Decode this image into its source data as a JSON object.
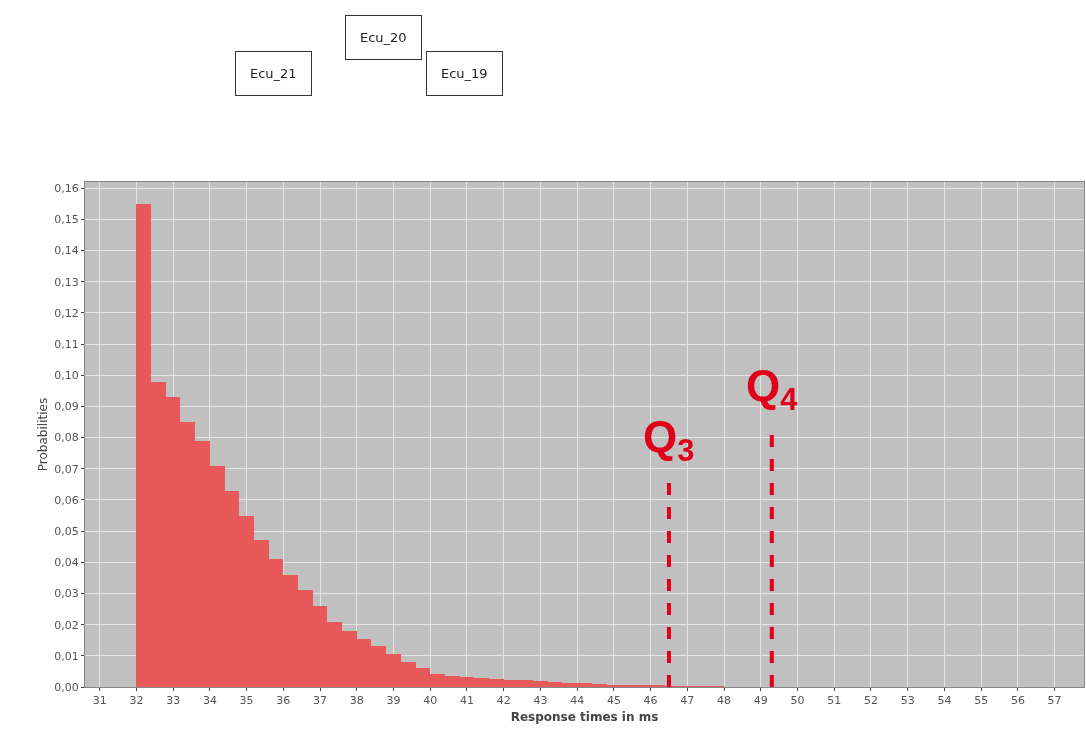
{
  "chart_data": {
    "type": "histogram",
    "xlabel": "Response times in ms",
    "ylabel": "Probabilities",
    "bins": [
      32.0,
      32.4,
      32.8,
      33.2,
      33.6,
      34.0,
      34.4,
      34.8,
      35.2,
      35.6,
      36.0,
      36.4,
      36.8,
      37.2,
      37.6,
      38.0,
      38.4,
      38.8,
      39.2,
      39.6,
      40.0,
      40.4,
      40.8,
      41.2,
      41.6,
      42.0,
      42.4,
      42.8,
      43.2,
      43.6,
      44.0,
      44.4,
      44.8,
      45.2,
      45.6,
      46.0,
      46.4,
      46.8,
      47.2,
      47.6,
      48.0
    ],
    "values": [
      0.155,
      0.098,
      0.093,
      0.085,
      0.079,
      0.071,
      0.063,
      0.055,
      0.047,
      0.041,
      0.036,
      0.031,
      0.026,
      0.021,
      0.018,
      0.0155,
      0.013,
      0.0105,
      0.008,
      0.006,
      0.0042,
      0.0035,
      0.0032,
      0.003,
      0.0027,
      0.0024,
      0.0021,
      0.0019,
      0.0016,
      0.0014,
      0.0012,
      0.001,
      0.0008,
      0.0006,
      0.0005,
      0.0004,
      0.0003,
      0.0002,
      0.0001,
      0.0001
    ],
    "color": "#e85a5a",
    "xlim": [
      30.6,
      57.8
    ],
    "ylim": [
      0,
      0.162
    ],
    "xticks": [
      31,
      32,
      33,
      34,
      35,
      36,
      37,
      38,
      39,
      40,
      41,
      42,
      43,
      44,
      45,
      46,
      47,
      48,
      49,
      50,
      51,
      52,
      53,
      54,
      55,
      56,
      57
    ],
    "yticks": [
      {
        "value": 0,
        "label": "0,00"
      },
      {
        "value": 0.01,
        "label": "0,01"
      },
      {
        "value": 0.02,
        "label": "0,02"
      },
      {
        "value": 0.03,
        "label": "0,03"
      },
      {
        "value": 0.04,
        "label": "0,04"
      },
      {
        "value": 0.05,
        "label": "0,05"
      },
      {
        "value": 0.06,
        "label": "0,06"
      },
      {
        "value": 0.07,
        "label": "0,07"
      },
      {
        "value": 0.08,
        "label": "0,08"
      },
      {
        "value": 0.09,
        "label": "0,09"
      },
      {
        "value": 0.1,
        "label": "0,10"
      },
      {
        "value": 0.11,
        "label": "0,11"
      },
      {
        "value": 0.12,
        "label": "0,12"
      },
      {
        "value": 0.13,
        "label": "0,13"
      },
      {
        "value": 0.14,
        "label": "0,14"
      },
      {
        "value": 0.15,
        "label": "0,15"
      },
      {
        "value": 0.16,
        "label": "0,16"
      }
    ],
    "grid": true,
    "ref_lines": [
      {
        "axis": "x",
        "value": 46.5,
        "label": "Q$_{3}$",
        "color": "#e0001a",
        "line_style": "dashed"
      },
      {
        "axis": "x",
        "value": 49.3,
        "label": "Q$_{4}$",
        "color": "#e0001a",
        "line_style": "dashed"
      }
    ],
    "annotations": [
      "Ecu_20",
      "Ecu_21",
      "Ecu_19"
    ]
  }
}
